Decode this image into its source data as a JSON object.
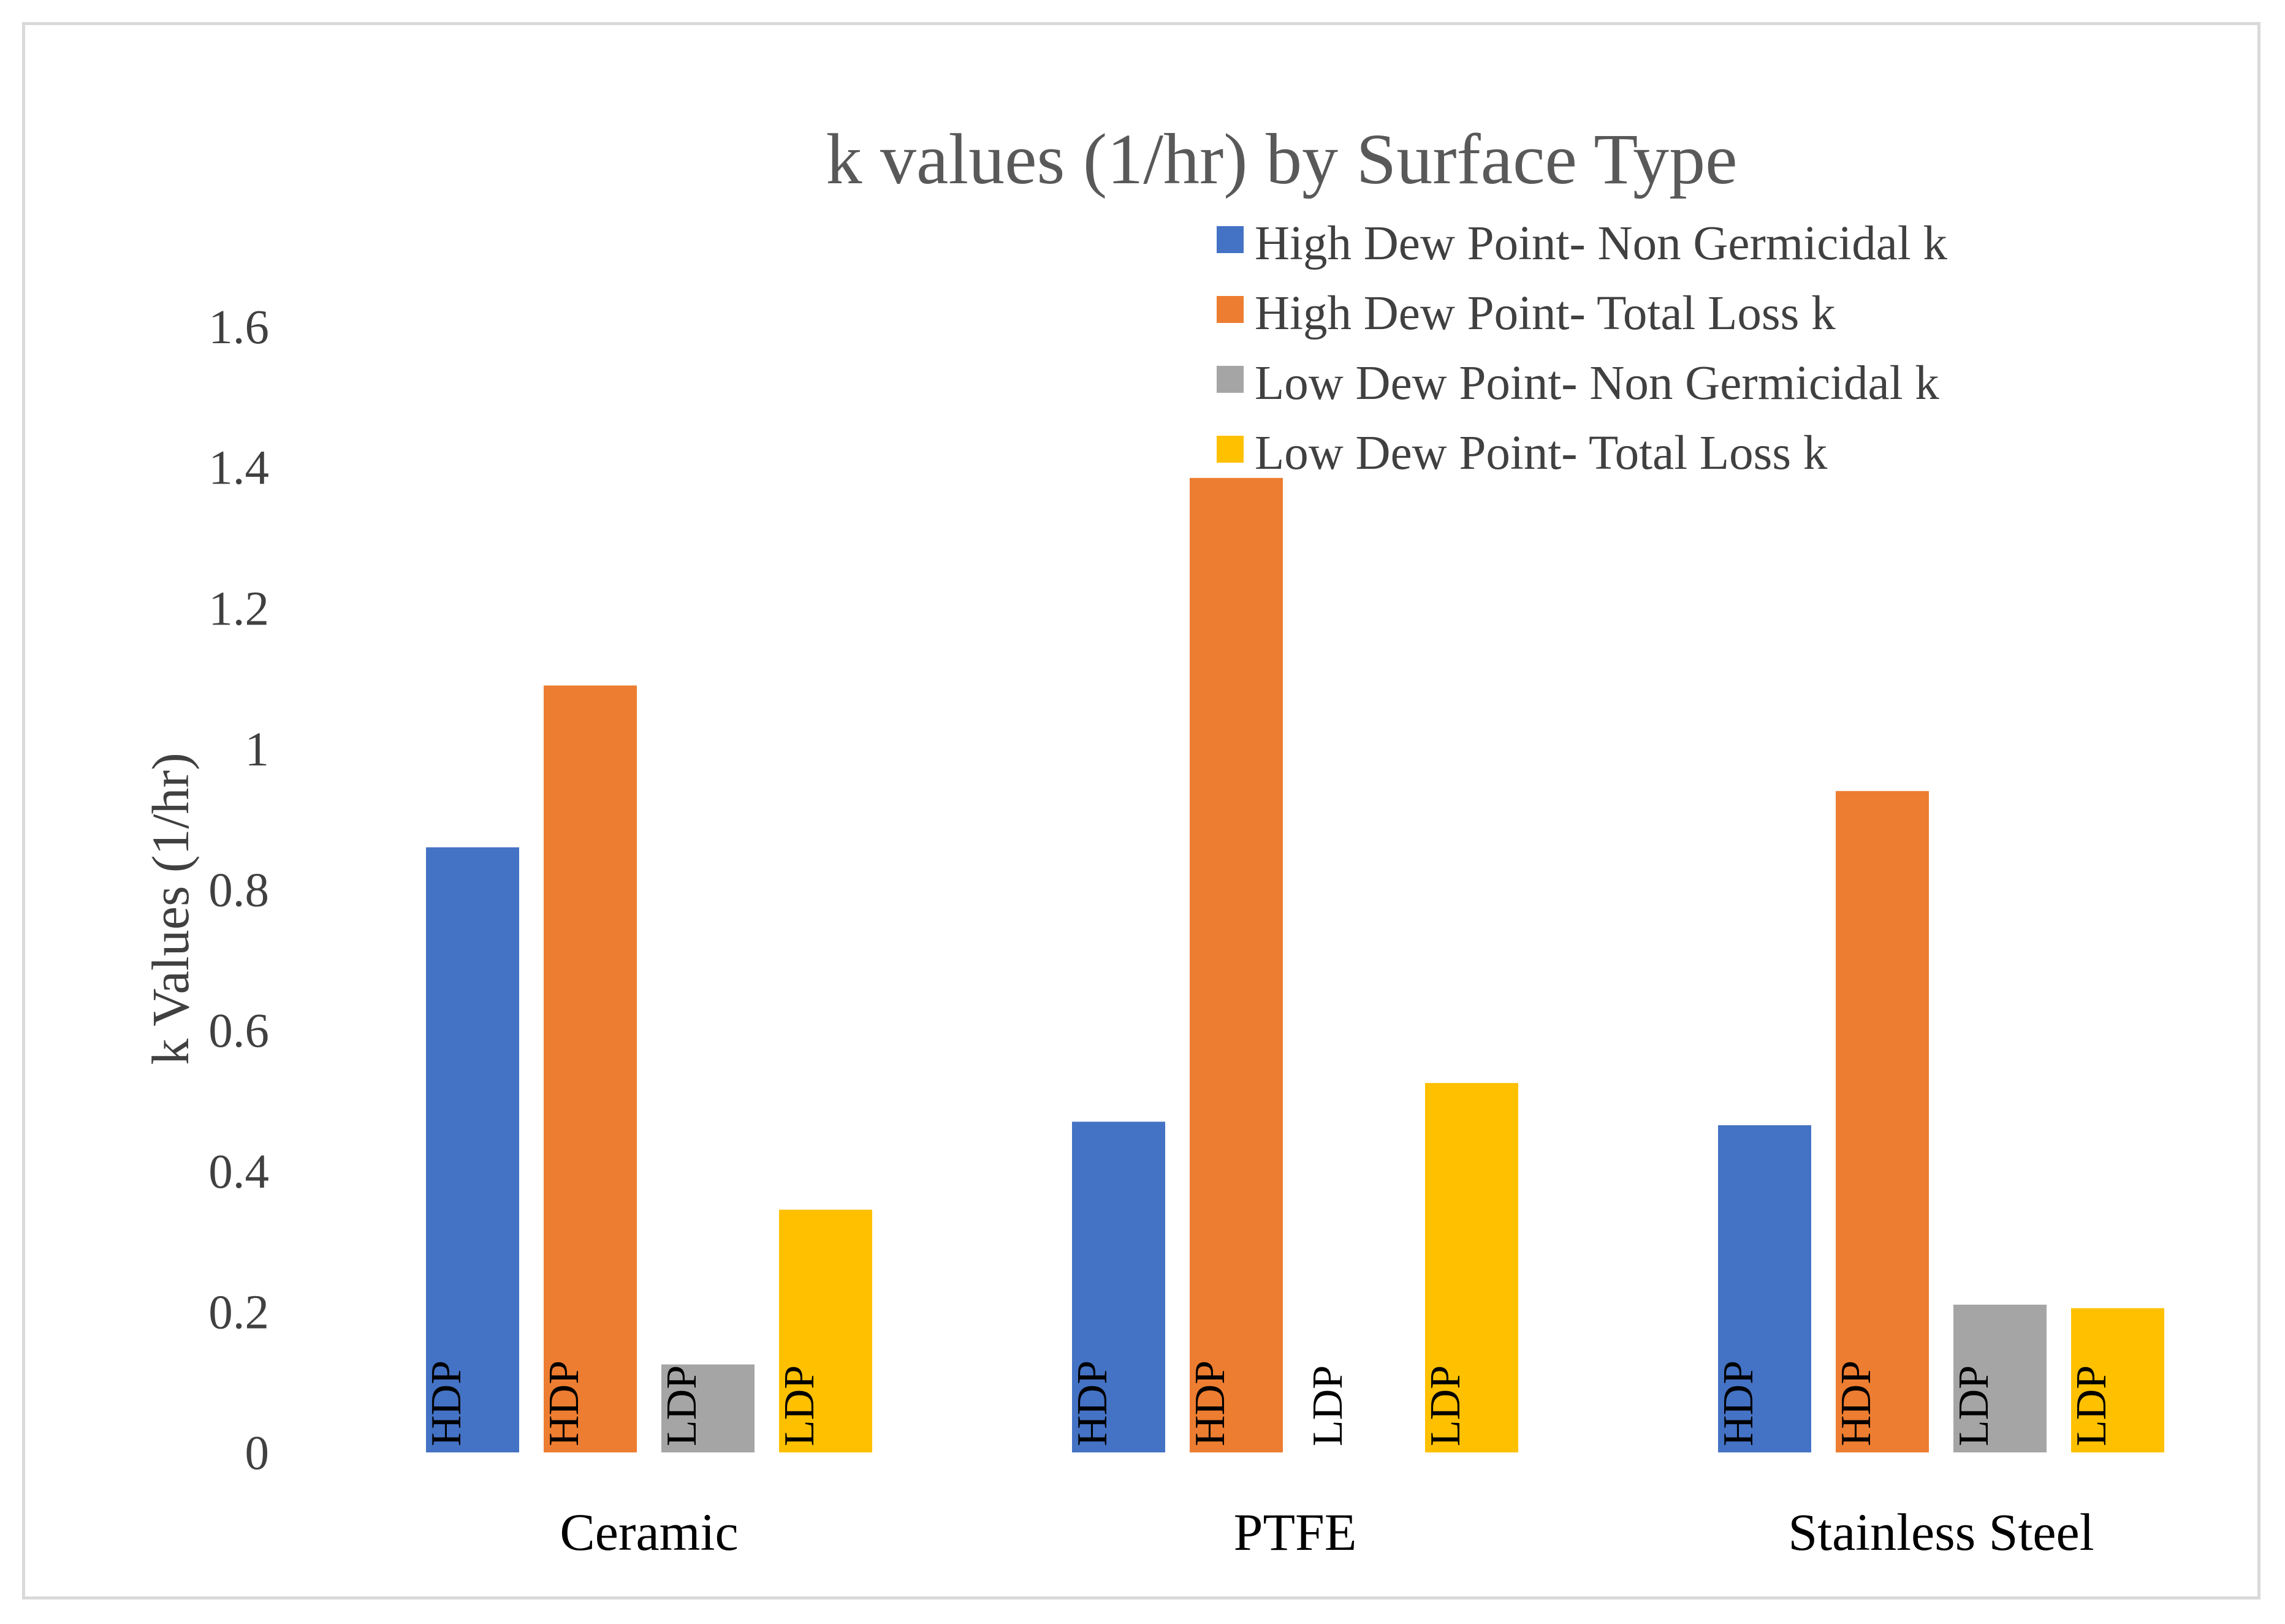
{
  "chart_data": {
    "type": "bar",
    "title": "k values (1/hr) by Surface Type",
    "xlabel": "",
    "ylabel": "k Values (1/hr)",
    "ylim": [
      0,
      1.6
    ],
    "yticks": [
      "0",
      "0.2",
      "0.4",
      "0.6",
      "0.8",
      "1",
      "1.2",
      "1.4",
      "1.6"
    ],
    "categories": [
      "Ceramic",
      "PTFE",
      "Stainless Steel"
    ],
    "legend_position": "top-right",
    "series": [
      {
        "name": "High Dew Point- Non Germicidal k",
        "color": "#4472C4",
        "bar_label": "HDP",
        "values": [
          0.86,
          0.47,
          0.465
        ]
      },
      {
        "name": "High Dew Point- Total Loss k",
        "color": "#ED7D31",
        "bar_label": "HDP",
        "values": [
          1.09,
          1.385,
          0.94
        ]
      },
      {
        "name": "Low Dew Point- Non Germicidal k",
        "color": "#A5A5A5",
        "bar_label": "LDP",
        "values": [
          0.125,
          0.0,
          0.21
        ]
      },
      {
        "name": "Low Dew Point- Total Loss k",
        "color": "#FFC000",
        "bar_label": "LDP",
        "values": [
          0.345,
          0.525,
          0.205
        ]
      }
    ]
  }
}
